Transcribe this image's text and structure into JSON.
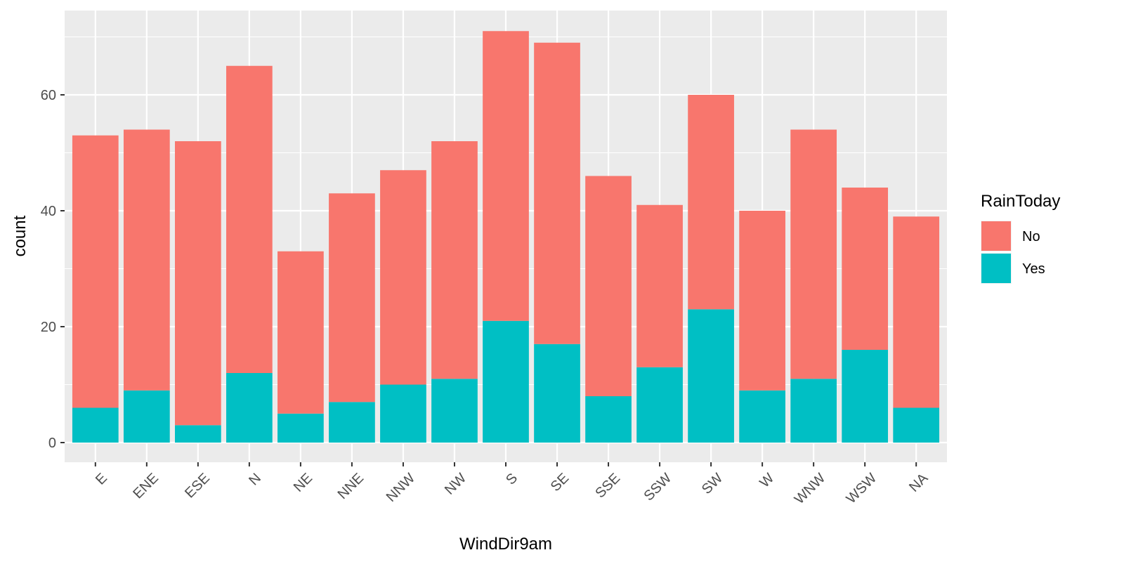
{
  "chart_data": {
    "type": "bar",
    "stacked": true,
    "xlabel": "WindDir9am",
    "ylabel": "count",
    "categories": [
      "E",
      "ENE",
      "ESE",
      "N",
      "NE",
      "NNE",
      "NNW",
      "NW",
      "S",
      "SE",
      "SSE",
      "SSW",
      "SW",
      "W",
      "WNW",
      "WSW",
      "NA"
    ],
    "series": [
      {
        "name": "No",
        "color": "#F8766D",
        "values": [
          47,
          45,
          49,
          53,
          28,
          36,
          37,
          41,
          50,
          52,
          38,
          28,
          37,
          31,
          43,
          28,
          33
        ]
      },
      {
        "name": "Yes",
        "color": "#00BFC4",
        "values": [
          6,
          9,
          3,
          12,
          5,
          7,
          10,
          11,
          21,
          17,
          8,
          13,
          23,
          9,
          11,
          16,
          6
        ]
      }
    ],
    "ylim": [
      0,
      74
    ],
    "yticks": [
      0,
      20,
      40,
      60
    ],
    "grid": true,
    "legend": {
      "title": "RainToday",
      "position": "right"
    },
    "panel_background": "#EBEBEB",
    "grid_color": "#FFFFFF"
  }
}
